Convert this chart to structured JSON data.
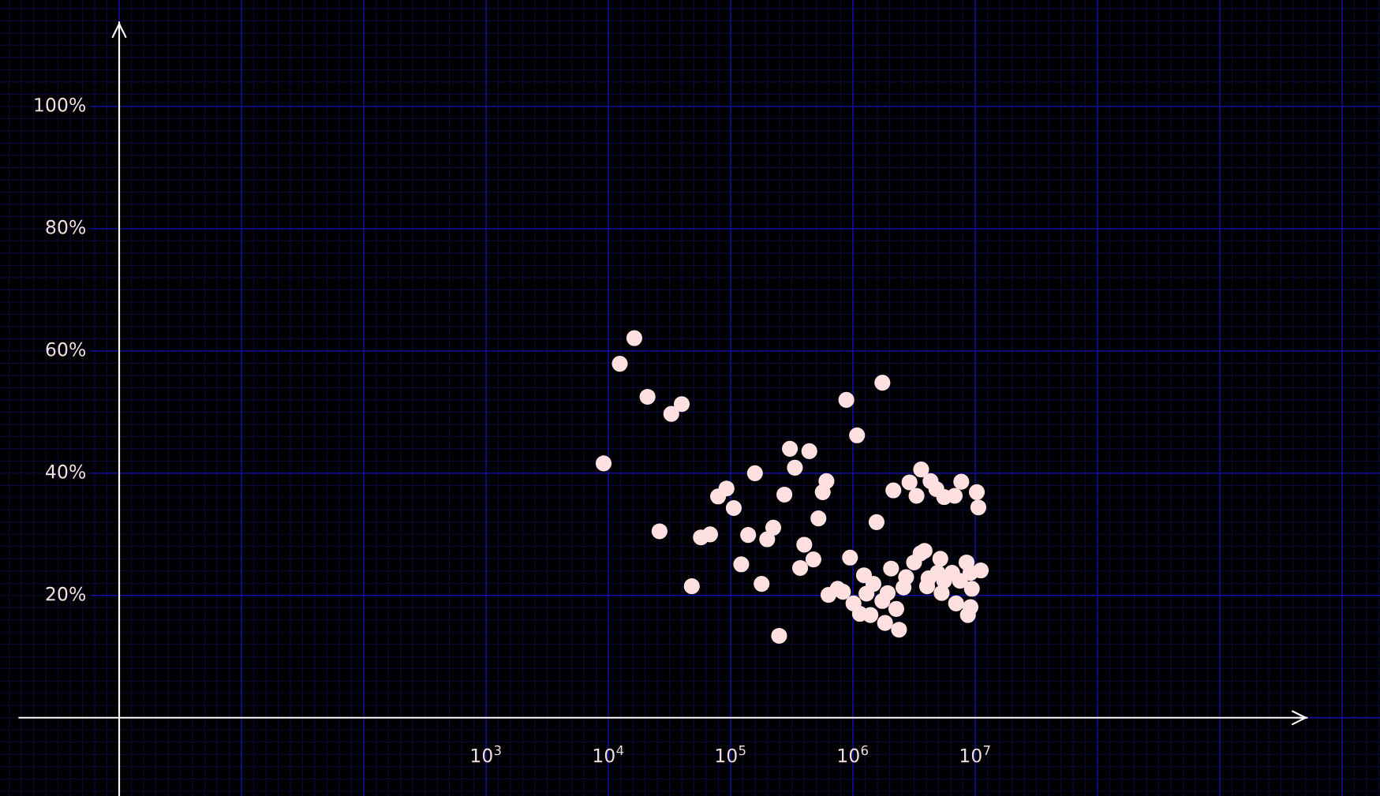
{
  "chart_data": {
    "type": "scatter",
    "color": "#ffe0e0",
    "marker": "circle",
    "grid": true,
    "log": "x",
    "xlim": [
      0.106,
      20400000000
    ],
    "ylim": [
      -12.8,
      117.4
    ],
    "xticks": [
      {
        "value": 1,
        "label": null
      },
      {
        "value": 10,
        "label": null
      },
      {
        "value": 100,
        "label": null
      },
      {
        "value": 1000,
        "label": "10$^{3}$"
      },
      {
        "value": 10000,
        "label": "10$^{4}$"
      },
      {
        "value": 100000,
        "label": "10$^{5}$"
      },
      {
        "value": 1000000,
        "label": "10$^{6}$"
      },
      {
        "value": 10000000,
        "label": "10$^{7}$"
      },
      {
        "value": 100000000,
        "label": null
      },
      {
        "value": 1000000000,
        "label": null
      },
      {
        "value": 10000000000,
        "label": null
      }
    ],
    "yticks": [
      {
        "value": 0,
        "label": null
      },
      {
        "value": 20,
        "label": "20%"
      },
      {
        "value": 40,
        "label": "40%"
      },
      {
        "value": 60,
        "label": "60%"
      },
      {
        "value": 80,
        "label": "80%"
      },
      {
        "value": 100,
        "label": "100%"
      }
    ],
    "x": [
      9140,
      12400,
      16300,
      20900,
      26200,
      32700,
      39800,
      48100,
      57100,
      67900,
      78900,
      92500,
      106000,
      122000,
      139000,
      158000,
      179000,
      199000,
      223000,
      249000,
      275000,
      305000,
      335000,
      370000,
      400000,
      440000,
      475000,
      522000,
      566000,
      607000,
      631000,
      750000,
      828000,
      883000,
      946000,
      1010000,
      1080000,
      1140000,
      1230000,
      1290000,
      1390000,
      1470000,
      1560000,
      1740000,
      1740000,
      1830000,
      1920000,
      2050000,
      2140000,
      2260000,
      2380000,
      2590000,
      2720000,
      2900000,
      3160000,
      3310000,
      3570000,
      3610000,
      3850000,
      4040000,
      4150000,
      4310000,
      4810000,
      4920000,
      5180000,
      5310000,
      5570000,
      5570000,
      6470000,
      6790000,
      6970000,
      7500000,
      7690000,
      8490000,
      8710000,
      9140000,
      9140000,
      9380000,
      10300000,
      10600000,
      11100000
    ],
    "values": [
      41.6,
      57.9,
      62.1,
      52.5,
      30.5,
      49.7,
      51.3,
      21.5,
      29.5,
      30.0,
      36.2,
      37.5,
      34.3,
      25.1,
      29.9,
      40.0,
      21.9,
      29.2,
      31.1,
      13.4,
      36.5,
      44.0,
      40.9,
      24.5,
      28.3,
      43.6,
      25.9,
      32.6,
      36.9,
      38.7,
      20.1,
      21.1,
      20.6,
      52.0,
      26.2,
      18.7,
      46.2,
      17.0,
      23.3,
      20.3,
      16.8,
      21.9,
      32.0,
      19.1,
      54.8,
      15.5,
      20.4,
      24.4,
      37.2,
      17.8,
      14.4,
      21.3,
      23.0,
      38.5,
      25.4,
      36.3,
      26.9,
      40.6,
      27.3,
      21.5,
      22.8,
      38.7,
      37.4,
      23.7,
      26.0,
      20.4,
      36.1,
      22.4,
      23.7,
      36.3,
      18.7,
      22.4,
      38.6,
      25.4,
      16.8,
      23.7,
      18.1,
      21.1,
      36.9,
      34.4,
      24.1
    ]
  }
}
